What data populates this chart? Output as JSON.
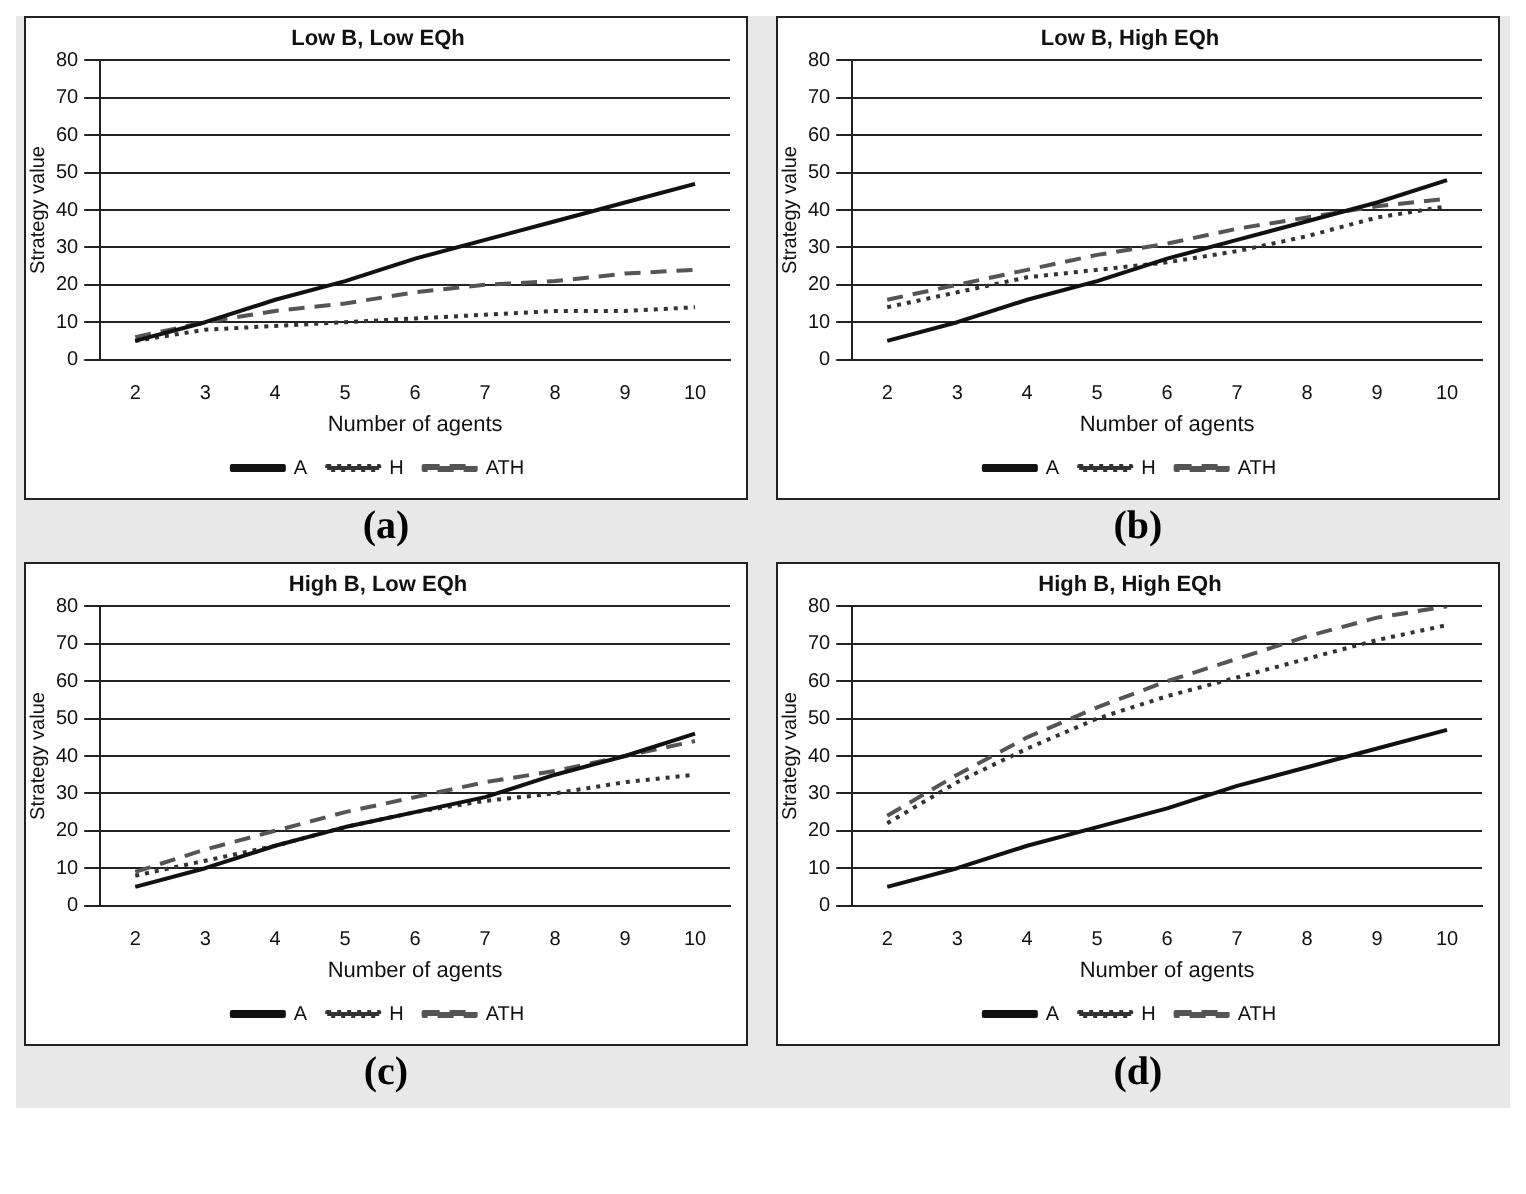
{
  "chart_data": [
    {
      "type": "line",
      "title": "Low B, Low EQh",
      "xlabel": "Number of agents",
      "ylabel": "Strategy value",
      "categories": [
        "2",
        "3",
        "4",
        "5",
        "6",
        "7",
        "8",
        "9",
        "10"
      ],
      "series": [
        {
          "name": "A",
          "color": "#111111",
          "line_style": "solid",
          "values": [
            5,
            10,
            16,
            21,
            27,
            32,
            37,
            42,
            47
          ]
        },
        {
          "name": "H",
          "color": "#333333",
          "line_style": "dotted",
          "values": [
            5,
            8,
            9,
            10,
            11,
            12,
            13,
            13,
            14
          ]
        },
        {
          "name": "ATH",
          "color": "#555555",
          "line_style": "dashed",
          "values": [
            6,
            10,
            13,
            15,
            18,
            20,
            21,
            23,
            24
          ]
        }
      ],
      "ylim": [
        0,
        80
      ],
      "yticks": [
        0,
        10,
        20,
        30,
        40,
        50,
        60,
        70,
        80
      ],
      "grid": "y",
      "legend": "bottom",
      "annotations": [
        "(a)"
      ]
    },
    {
      "type": "line",
      "title": "Low B, High EQh",
      "xlabel": "Number of agents",
      "ylabel": "Strategy value",
      "categories": [
        "2",
        "3",
        "4",
        "5",
        "6",
        "7",
        "8",
        "9",
        "10"
      ],
      "series": [
        {
          "name": "A",
          "color": "#111111",
          "line_style": "solid",
          "values": [
            5,
            10,
            16,
            21,
            27,
            32,
            37,
            42,
            48
          ]
        },
        {
          "name": "H",
          "color": "#333333",
          "line_style": "dotted",
          "values": [
            14,
            18,
            22,
            24,
            26,
            29,
            33,
            38,
            41
          ]
        },
        {
          "name": "ATH",
          "color": "#555555",
          "line_style": "dashed",
          "values": [
            16,
            20,
            24,
            28,
            31,
            35,
            38,
            41,
            43
          ]
        }
      ],
      "ylim": [
        0,
        80
      ],
      "yticks": [
        0,
        10,
        20,
        30,
        40,
        50,
        60,
        70,
        80
      ],
      "grid": "y",
      "legend": "bottom",
      "annotations": [
        "(b)"
      ]
    },
    {
      "type": "line",
      "title": "High B, Low EQh",
      "xlabel": "Number of agents",
      "ylabel": "Strategy value",
      "categories": [
        "2",
        "3",
        "4",
        "5",
        "6",
        "7",
        "8",
        "9",
        "10"
      ],
      "series": [
        {
          "name": "A",
          "color": "#111111",
          "line_style": "solid",
          "values": [
            5,
            10,
            16,
            21,
            25,
            29,
            35,
            40,
            46
          ]
        },
        {
          "name": "H",
          "color": "#333333",
          "line_style": "dotted",
          "values": [
            8,
            12,
            16,
            21,
            25,
            28,
            30,
            33,
            35
          ]
        },
        {
          "name": "ATH",
          "color": "#555555",
          "line_style": "dashed",
          "values": [
            9,
            15,
            20,
            25,
            29,
            33,
            36,
            40,
            44
          ]
        }
      ],
      "ylim": [
        0,
        80
      ],
      "yticks": [
        0,
        10,
        20,
        30,
        40,
        50,
        60,
        70,
        80
      ],
      "grid": "y",
      "legend": "bottom",
      "annotations": [
        "(c)"
      ]
    },
    {
      "type": "line",
      "title": "High B, High EQh",
      "xlabel": "Number of agents",
      "ylabel": "Strategy value",
      "categories": [
        "2",
        "3",
        "4",
        "5",
        "6",
        "7",
        "8",
        "9",
        "10"
      ],
      "series": [
        {
          "name": "A",
          "color": "#111111",
          "line_style": "solid",
          "values": [
            5,
            10,
            16,
            21,
            26,
            32,
            37,
            42,
            47
          ]
        },
        {
          "name": "H",
          "color": "#333333",
          "line_style": "dotted",
          "values": [
            22,
            33,
            42,
            50,
            56,
            61,
            66,
            71,
            75
          ]
        },
        {
          "name": "ATH",
          "color": "#555555",
          "line_style": "dashed",
          "values": [
            24,
            35,
            45,
            53,
            60,
            66,
            72,
            77,
            80
          ]
        }
      ],
      "ylim": [
        0,
        80
      ],
      "yticks": [
        0,
        10,
        20,
        30,
        40,
        50,
        60,
        70,
        80
      ],
      "grid": "y",
      "legend": "bottom",
      "annotations": [
        "(d)"
      ]
    }
  ]
}
